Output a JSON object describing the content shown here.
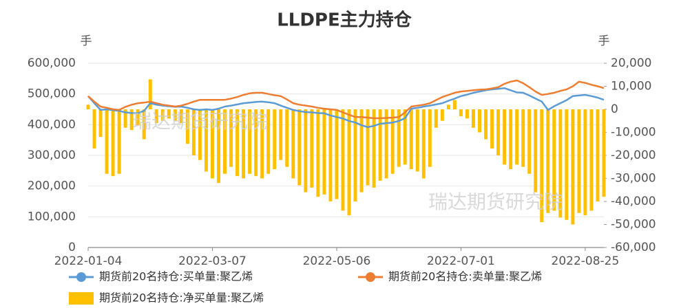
{
  "chart_data": {
    "type": "bar-line",
    "title": "LLDPE主力持仓",
    "y_unit": "手",
    "y2_unit": "手",
    "watermarks": [
      "瑞达期货研究院",
      "瑞达期货研究院"
    ],
    "categories": [
      "2022-01-04",
      null,
      null,
      null,
      null,
      null,
      null,
      null,
      null,
      null,
      null,
      null,
      null,
      null,
      null,
      null,
      null,
      null,
      null,
      null,
      "2022-03-07",
      null,
      null,
      null,
      null,
      null,
      null,
      null,
      null,
      null,
      null,
      null,
      null,
      null,
      null,
      null,
      null,
      null,
      null,
      null,
      "2022-05-06",
      null,
      null,
      null,
      null,
      null,
      null,
      null,
      null,
      null,
      null,
      null,
      null,
      null,
      null,
      null,
      null,
      null,
      null,
      null,
      "2022-07-01",
      null,
      null,
      null,
      null,
      null,
      null,
      null,
      null,
      null,
      null,
      null,
      null,
      null,
      null,
      null,
      null,
      null,
      null,
      null,
      "2022-08-25",
      null,
      null,
      null
    ],
    "ylim": [
      0,
      600000
    ],
    "yticks": [
      0,
      {
        "value": 100000,
        "label": "100,000"
      },
      {
        "value": 200000,
        "label": "200,000"
      },
      {
        "value": 300000,
        "label": "300,000"
      },
      {
        "value": 400000,
        "label": "400,000"
      },
      {
        "value": 500000,
        "label": "500,000"
      },
      {
        "value": 600000,
        "label": "600,000"
      }
    ],
    "y2lim": [
      -60000,
      20000
    ],
    "y2ticks": [
      {
        "value": -60000,
        "label": "-60,000"
      },
      {
        "value": -50000,
        "label": "-50,000"
      },
      {
        "value": -40000,
        "label": "-40,000"
      },
      {
        "value": -30000,
        "label": "-30,000"
      },
      {
        "value": -20000,
        "label": "-20,000"
      },
      {
        "value": -10000,
        "label": "-10,000"
      },
      0,
      {
        "value": 10000,
        "label": "10,000"
      },
      {
        "value": 20000,
        "label": "20,000"
      }
    ],
    "grid": true,
    "series": [
      {
        "name": "期货前20名持仓:买单量:聚乙烯",
        "type": "line",
        "color": "#5b9bd5",
        "values": [
          493000,
          470000,
          448000,
          450000,
          447000,
          445000,
          440000,
          438000,
          437000,
          445000,
          470000,
          465000,
          462000,
          460000,
          458000,
          459000,
          455000,
          450000,
          448000,
          450000,
          448000,
          452000,
          459000,
          462000,
          466000,
          470000,
          472000,
          474000,
          475000,
          473000,
          470000,
          462000,
          455000,
          448000,
          444000,
          441000,
          440000,
          438000,
          437000,
          430000,
          425000,
          420000,
          412000,
          407000,
          398000,
          392000,
          396000,
          403000,
          405000,
          407000,
          412000,
          421000,
          452000,
          455000,
          459000,
          462000,
          466000,
          470000,
          478000,
          485000,
          493000,
          498000,
          504000,
          508000,
          512000,
          515000,
          517000,
          519000,
          512000,
          505000,
          504000,
          495000,
          485000,
          475000,
          448000,
          460000,
          470000,
          480000,
          493000,
          495000,
          497000,
          493000,
          488000,
          481000
        ]
      },
      {
        "name": "期货前20名持仓:卖单量:聚乙烯",
        "type": "line",
        "color": "#ed7d31",
        "values": [
          493000,
          475000,
          459000,
          455000,
          450000,
          448000,
          458000,
          465000,
          470000,
          472000,
          475000,
          470000,
          465000,
          462000,
          459000,
          462000,
          468000,
          475000,
          481000,
          481000,
          481000,
          481000,
          481000,
          485000,
          490000,
          497000,
          502000,
          504000,
          504000,
          500000,
          496000,
          493000,
          482000,
          470000,
          465000,
          462000,
          459000,
          455000,
          452000,
          450000,
          448000,
          440000,
          432000,
          425000,
          425000,
          423000,
          421000,
          421000,
          422000,
          423000,
          425000,
          440000,
          459000,
          462000,
          465000,
          470000,
          480000,
          490000,
          497000,
          504000,
          508000,
          510000,
          512000,
          514000,
          515000,
          518000,
          522000,
          533000,
          540000,
          544000,
          535000,
          522000,
          508000,
          497000,
          500000,
          504000,
          510000,
          515000,
          525000,
          540000,
          536000,
          530000,
          525000,
          519000
        ]
      },
      {
        "name": "期货前20名持仓:净买单量:聚乙烯",
        "type": "bar",
        "axis": "y2",
        "color": "#ffc000",
        "values": [
          2000,
          -17000,
          -12000,
          -28000,
          -29000,
          -28000,
          -8000,
          -9000,
          -7000,
          -13000,
          13000,
          -6000,
          -5000,
          -4000,
          -5000,
          -6000,
          -15000,
          -20000,
          -22000,
          -27000,
          -30000,
          -32000,
          -28000,
          -25000,
          -29000,
          -30000,
          -28000,
          -29000,
          -30000,
          -28000,
          -26000,
          -22000,
          -25000,
          -30000,
          -33000,
          -36000,
          -34000,
          -38000,
          -37000,
          -40000,
          -39000,
          -44000,
          -46000,
          -40000,
          -36000,
          -33000,
          -34000,
          -31000,
          -30000,
          -28000,
          -25000,
          -24000,
          -26000,
          -27000,
          -30000,
          -25000,
          -8000,
          -5000,
          2000,
          4000,
          -3000,
          -4000,
          -8000,
          -10000,
          -13000,
          -17000,
          -20000,
          -24000,
          -26000,
          -24000,
          -25000,
          -28000,
          -36000,
          -49000,
          -45000,
          -44000,
          -47000,
          -48000,
          -50000,
          -45000,
          -46000,
          -44000,
          -40000,
          -38000
        ]
      }
    ]
  }
}
